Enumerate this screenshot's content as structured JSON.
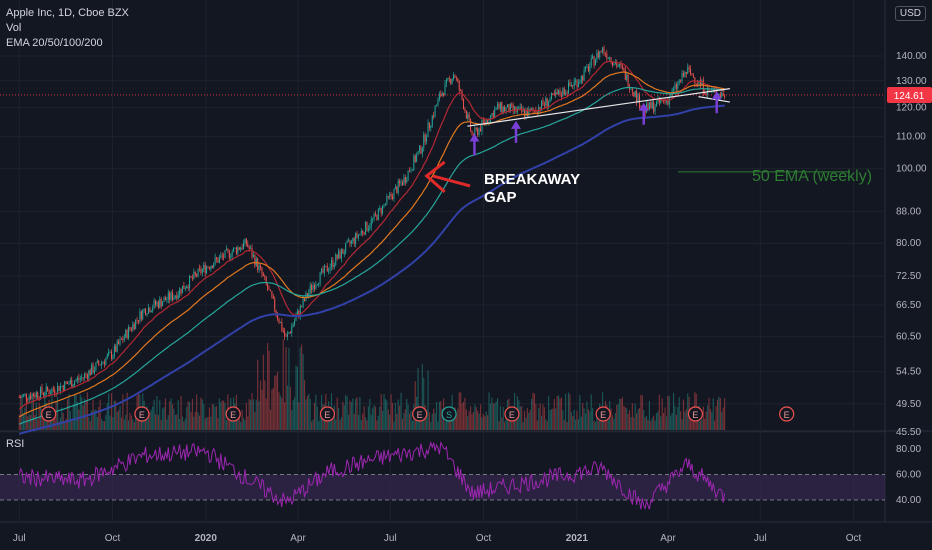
{
  "header": {
    "symbol_line": "Apple Inc, 1D, Cboe BZX",
    "volume_label": "Vol",
    "ema_label": "EMA 20/50/100/200",
    "currency": "USD"
  },
  "rsi_label": "RSI",
  "colors": {
    "background": "#131722",
    "grid": "#1e222d",
    "up": "#26a69a",
    "down": "#ef5350",
    "ema20": "#b22833",
    "ema50": "#e0781f",
    "ema100": "#26a69a",
    "ema200": "#3141a8",
    "rsi_line": "#9c27b0",
    "rsi_band": "#3a2a55",
    "price_tag": "#f23645",
    "arrow_red": "#e02a2a",
    "arrow_purple": "#7a3fd6",
    "annotation_green": "#2e7d32"
  },
  "chart_data": {
    "type": "candlestick",
    "x_ticks": [
      "Jul",
      "Oct",
      "2020",
      "Apr",
      "Jul",
      "Oct",
      "2021",
      "Apr",
      "Jul",
      "Oct"
    ],
    "y_ticks": [
      45.5,
      49.5,
      54.5,
      60.5,
      66.5,
      72.5,
      80.0,
      88.0,
      100.0,
      110.0,
      120.0,
      130.0,
      140.0
    ],
    "y_tick_labels": [
      "45.50",
      "49.50",
      "54.50",
      "60.50",
      "66.50",
      "72.50",
      "80.00",
      "88.00",
      "100.00",
      "110.00",
      "120.00",
      "130.00",
      "140.00"
    ],
    "scale": "log",
    "last_price": 124.61,
    "last_price_label": "124.61",
    "price_path": [
      {
        "d": "2019-07-01",
        "p": 50.5
      },
      {
        "d": "2019-08-01",
        "p": 51.5
      },
      {
        "d": "2019-09-01",
        "p": 53.5
      },
      {
        "d": "2019-10-01",
        "p": 57.5
      },
      {
        "d": "2019-11-01",
        "p": 65.5
      },
      {
        "d": "2019-12-01",
        "p": 68.5
      },
      {
        "d": "2020-01-01",
        "p": 74.5
      },
      {
        "d": "2020-02-10",
        "p": 80.0
      },
      {
        "d": "2020-02-25",
        "p": 73.0
      },
      {
        "d": "2020-03-20",
        "p": 60.0
      },
      {
        "d": "2020-04-15",
        "p": 70.5
      },
      {
        "d": "2020-05-15",
        "p": 78.0
      },
      {
        "d": "2020-06-15",
        "p": 86.0
      },
      {
        "d": "2020-07-15",
        "p": 97.0
      },
      {
        "d": "2020-07-31",
        "p": 106.0
      },
      {
        "d": "2020-08-20",
        "p": 125.0
      },
      {
        "d": "2020-09-02",
        "p": 133.0
      },
      {
        "d": "2020-09-20",
        "p": 110.0
      },
      {
        "d": "2020-10-15",
        "p": 120.0
      },
      {
        "d": "2020-11-15",
        "p": 118.0
      },
      {
        "d": "2020-12-15",
        "p": 125.0
      },
      {
        "d": "2021-01-05",
        "p": 131.0
      },
      {
        "d": "2021-01-26",
        "p": 143.0
      },
      {
        "d": "2021-02-15",
        "p": 134.0
      },
      {
        "d": "2021-03-08",
        "p": 119.0
      },
      {
        "d": "2021-04-01",
        "p": 123.0
      },
      {
        "d": "2021-04-20",
        "p": 134.0
      },
      {
        "d": "2021-05-10",
        "p": 126.0
      },
      {
        "d": "2021-05-27",
        "p": 124.61
      }
    ],
    "ema_series": [
      {
        "key": "ema20",
        "lag": 20,
        "start": 48.5
      },
      {
        "key": "ema50",
        "lag": 50,
        "start": 47.5
      },
      {
        "key": "ema100",
        "lag": 100,
        "start": 46.5
      },
      {
        "key": "ema200",
        "lag": 200,
        "start": 45.2
      }
    ],
    "earnings_markers": [
      {
        "d": "2019-07-30",
        "label": "E"
      },
      {
        "d": "2019-10-30",
        "label": "E"
      },
      {
        "d": "2020-01-28",
        "label": "E"
      },
      {
        "d": "2020-04-30",
        "label": "E"
      },
      {
        "d": "2020-07-30",
        "label": "E"
      },
      {
        "d": "2020-08-28",
        "label": "S"
      },
      {
        "d": "2020-10-29",
        "label": "E"
      },
      {
        "d": "2021-01-27",
        "label": "E"
      },
      {
        "d": "2021-04-28",
        "label": "E"
      },
      {
        "d": "2021-07-27",
        "label": "E"
      }
    ],
    "rsi": {
      "levels": [
        40,
        60
      ],
      "y_ticks": [
        40.0,
        60.0,
        80.0
      ],
      "y_tick_labels": [
        "40.00",
        "60.00",
        "80.00"
      ],
      "path": [
        {
          "d": "2019-07-01",
          "v": 58
        },
        {
          "d": "2019-09-01",
          "v": 55
        },
        {
          "d": "2019-11-01",
          "v": 75
        },
        {
          "d": "2020-01-01",
          "v": 78
        },
        {
          "d": "2020-02-20",
          "v": 52
        },
        {
          "d": "2020-03-20",
          "v": 38
        },
        {
          "d": "2020-05-01",
          "v": 62
        },
        {
          "d": "2020-06-15",
          "v": 72
        },
        {
          "d": "2020-08-20",
          "v": 82
        },
        {
          "d": "2020-09-20",
          "v": 45
        },
        {
          "d": "2020-11-01",
          "v": 52
        },
        {
          "d": "2021-01-26",
          "v": 65
        },
        {
          "d": "2021-03-08",
          "v": 35
        },
        {
          "d": "2021-04-20",
          "v": 68
        },
        {
          "d": "2021-05-27",
          "v": 42
        }
      ]
    },
    "annotations": [
      {
        "kind": "text",
        "text": "BREAKAWAY"
      },
      {
        "kind": "text",
        "text": "GAP"
      },
      {
        "kind": "text",
        "text": "50 EMA (weekly)"
      }
    ],
    "trendlines": [
      {
        "from": {
          "d": "2020-09-15",
          "p": 113.5
        },
        "to": {
          "d": "2021-06-01",
          "p": 127.0
        }
      },
      {
        "from": {
          "d": "2021-05-01",
          "p": 124.0
        },
        "to": {
          "d": "2021-06-01",
          "p": 122.0
        }
      }
    ],
    "weekly_ema_level": 99.0,
    "gap_arrow_target": {
      "d": "2020-07-31",
      "p": 99.0
    },
    "purple_arrows": [
      {
        "d": "2020-09-22",
        "p": 104.0
      },
      {
        "d": "2020-11-02",
        "p": 108.0
      },
      {
        "d": "2021-03-08",
        "p": 114.0
      },
      {
        "d": "2021-05-19",
        "p": 118.0
      }
    ]
  }
}
